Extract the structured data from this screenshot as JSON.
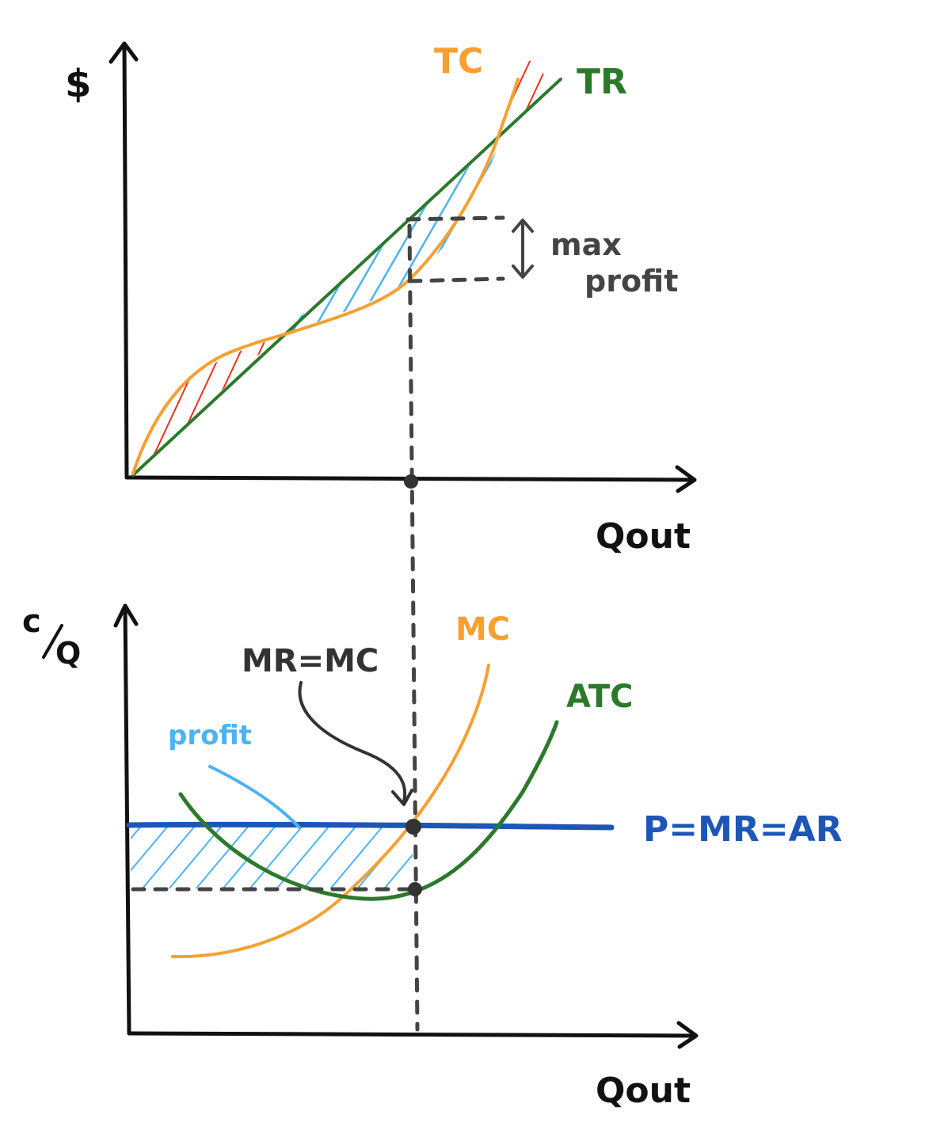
{
  "top_panel": {
    "y_axis_label": "$",
    "x_axis_label": "Qout",
    "tc_label": "TC",
    "tr_label": "TR",
    "max_profit_line1": "max",
    "max_profit_line2": "profit"
  },
  "bottom_panel": {
    "y_axis_label_num": "c",
    "y_axis_label_den": "Q",
    "x_axis_label": "Qout",
    "mc_label": "MC",
    "atc_label": "ATC",
    "mr_mc_label": "MR=MC",
    "profit_label": "profit",
    "price_label": "P=MR=AR"
  },
  "colors": {
    "tc": "#f7a031",
    "tr": "#2b7a2b",
    "mc": "#f7a031",
    "atc": "#2b7a2b",
    "price": "#1e56b8",
    "profit_hatch": "#4db3f2",
    "loss_hatch": "#e8321e",
    "ink": "#222222",
    "annotation": "#444444"
  }
}
